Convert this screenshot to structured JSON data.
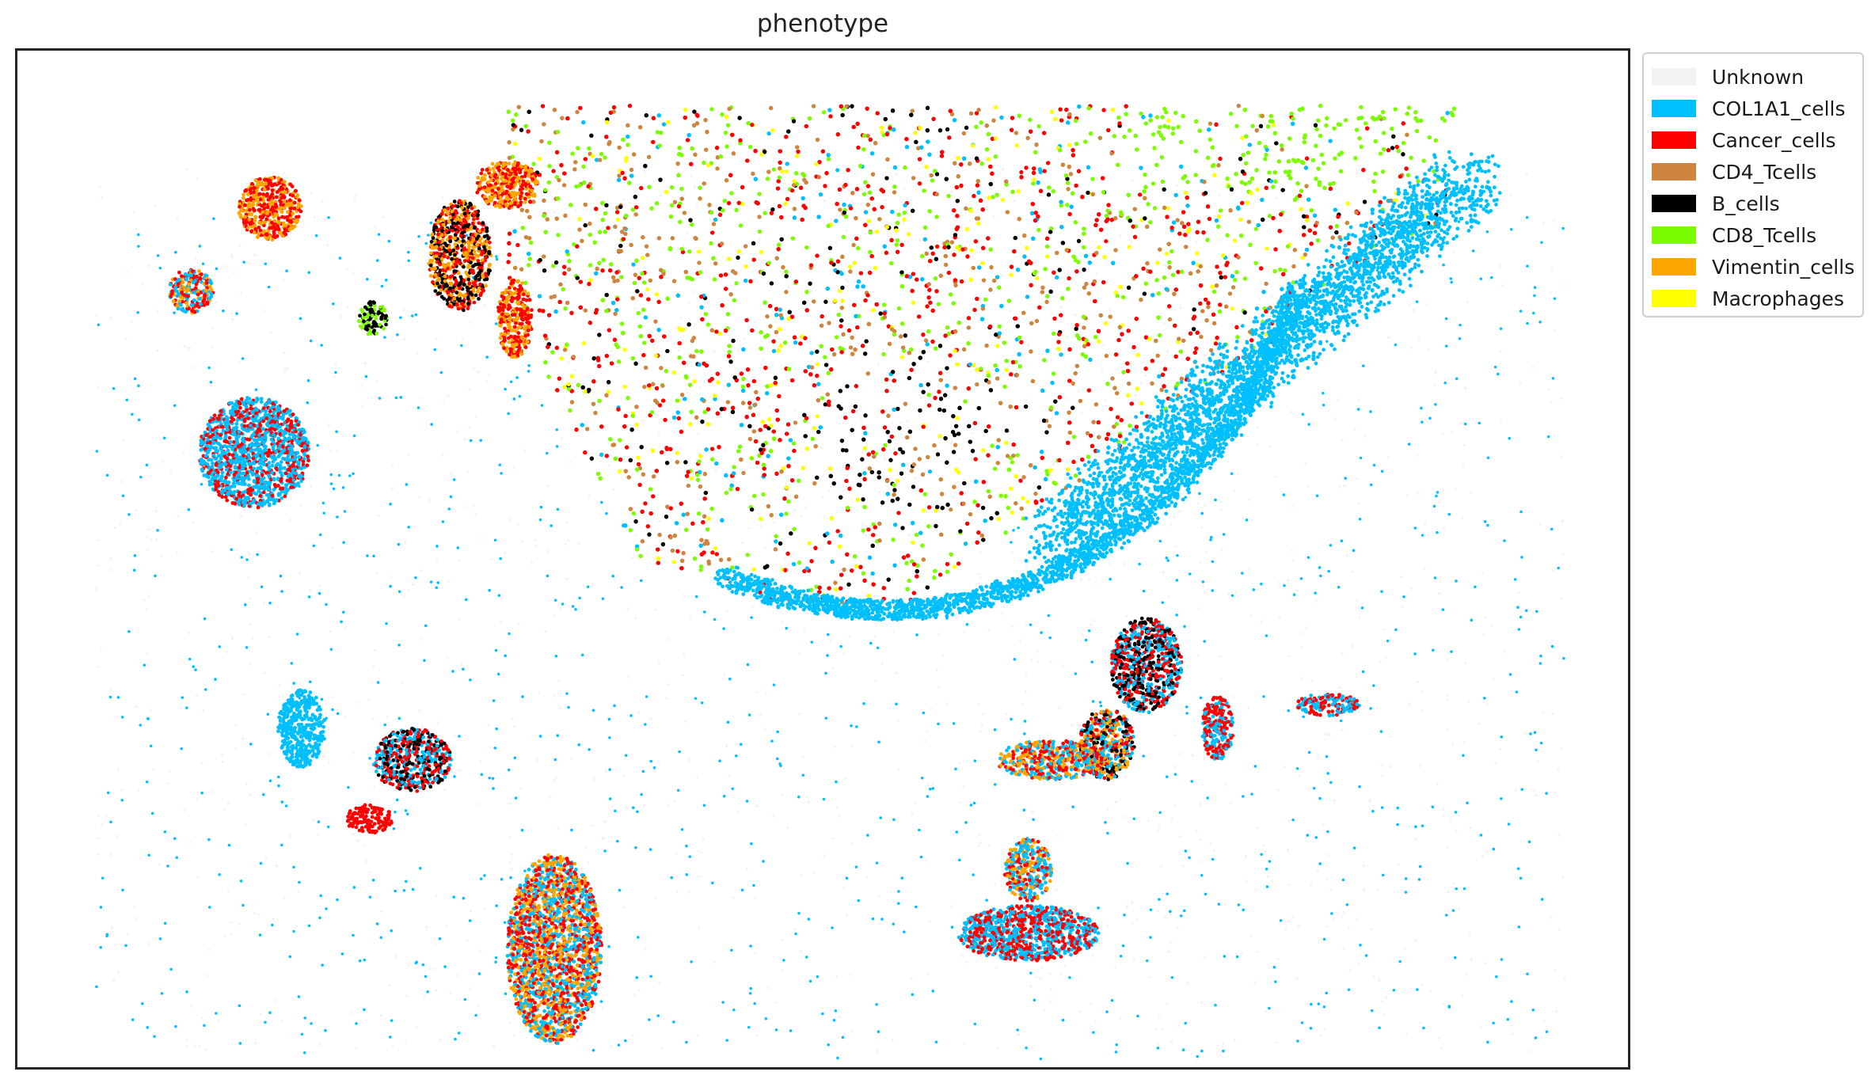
{
  "chart_data": {
    "type": "scatter",
    "title": "phenotype",
    "xlabel": "",
    "ylabel": "",
    "axes_ticks": false,
    "grid": false,
    "legend_placement": "outside-top-right",
    "legend": [
      {
        "name": "Unknown",
        "color": "#f2f2f2"
      },
      {
        "name": "COL1A1_cells",
        "color": "#00bfff"
      },
      {
        "name": "Cancer_cells",
        "color": "#ff0000"
      },
      {
        "name": "CD4_Tcells",
        "color": "#cd853f"
      },
      {
        "name": "B_cells",
        "color": "#000000"
      },
      {
        "name": "CD8_Tcells",
        "color": "#7cfc00"
      },
      {
        "name": "Vimentin_cells",
        "color": "#ffa500"
      },
      {
        "name": "Macrophages",
        "color": "#ffff00"
      }
    ],
    "point_density_by_region": [
      {
        "region": "upper-central tumor mass",
        "dominant": [
          "Cancer_cells",
          "CD8_Tcells",
          "CD4_Tcells",
          "B_cells"
        ]
      },
      {
        "region": "tumor border (east and south)",
        "dominant": [
          "COL1A1_cells"
        ]
      },
      {
        "region": "scattered tissue (west and south)",
        "dominant": [
          "COL1A1_cells",
          "Unknown",
          "Cancer_cells",
          "Vimentin_cells"
        ]
      }
    ]
  }
}
